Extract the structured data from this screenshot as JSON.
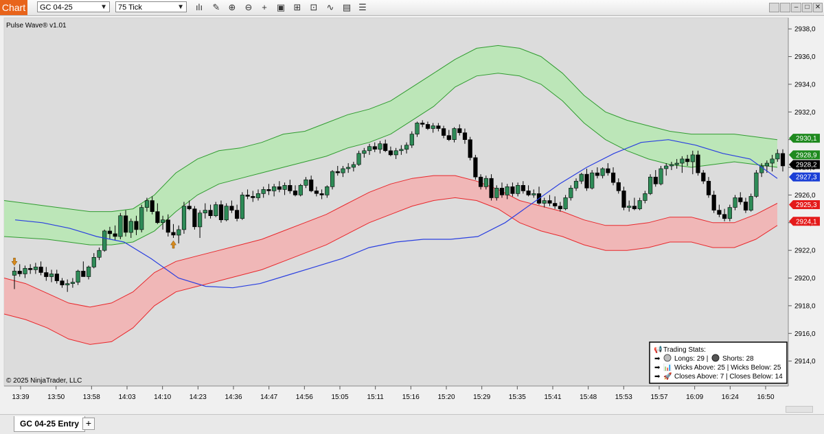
{
  "toolbar": {
    "chart_label": "Chart",
    "instrument": "GC 04-25",
    "interval": "75 Tick",
    "icons": [
      "bar-type-icon",
      "draw-pencil-icon",
      "zoom-in-icon",
      "zoom-out-icon",
      "crosshair-icon",
      "properties-icon",
      "move-icon",
      "strategies-icon",
      "indicators-icon",
      "templates-icon",
      "menu-icon"
    ],
    "window_buttons": [
      "minimize",
      "restore",
      "maximize",
      "close"
    ]
  },
  "tabs": {
    "entry": "GC 04-25 Entry",
    "add": "+"
  },
  "stats": {
    "title": "Trading Stats:",
    "longs": "Longs: 29 |",
    "shorts": "Shorts: 28",
    "wicks_above": "Wicks Above: 25 | Wicks Below: 25",
    "closes_above": "Closes Above: 7 | Closes Below: 14"
  },
  "chart_data": {
    "type": "candlestick",
    "indicator_label": "Pulse Wave® v1.01",
    "copyright": "© 2025 NinjaTrader, LLC",
    "ylim": [
      2912.2,
      2938.8
    ],
    "y_ticks": [
      2938.0,
      2936.0,
      2934.0,
      2932.0,
      2930.0,
      2928.0,
      2926.0,
      2924.0,
      2922.0,
      2920.0,
      2918.0,
      2916.0,
      2914.0
    ],
    "y_tick_labels": [
      "2938,0",
      "2936,0",
      "2934,0",
      "2932,0",
      "2930,0",
      "2928,0",
      "2926,0",
      "2924,0",
      "2922,0",
      "2920,0",
      "2918,0",
      "2916,0",
      "2914,0"
    ],
    "x_tick_labels": [
      "13:39",
      "13:50",
      "13:58",
      "14:03",
      "14:10",
      "14:23",
      "14:36",
      "14:47",
      "14:56",
      "15:05",
      "15:11",
      "15:16",
      "15:20",
      "15:29",
      "15:35",
      "15:41",
      "15:48",
      "15:53",
      "15:57",
      "16:09",
      "16:24",
      "16:50"
    ],
    "candles": [
      [
        2920.2,
        2920.8,
        2919.2,
        2920.5
      ],
      [
        2920.5,
        2921.0,
        2920.1,
        2920.3
      ],
      [
        2920.3,
        2920.9,
        2920.0,
        2920.7
      ],
      [
        2920.7,
        2921.0,
        2920.3,
        2920.6
      ],
      [
        2920.6,
        2921.1,
        2920.3,
        2920.8
      ],
      [
        2920.8,
        2921.2,
        2920.2,
        2920.4
      ],
      [
        2920.4,
        2920.8,
        2919.8,
        2920.1
      ],
      [
        2920.1,
        2920.6,
        2919.7,
        2920.3
      ],
      [
        2920.3,
        2920.6,
        2919.6,
        2919.8
      ],
      [
        2919.8,
        2920.0,
        2919.3,
        2919.5
      ],
      [
        2919.5,
        2919.9,
        2919.0,
        2919.6
      ],
      [
        2919.6,
        2920.0,
        2919.3,
        2919.7
      ],
      [
        2919.7,
        2920.6,
        2919.5,
        2920.5
      ],
      [
        2920.5,
        2921.2,
        2920.3,
        2920.1
      ],
      [
        2920.1,
        2920.9,
        2919.9,
        2920.8
      ],
      [
        2920.8,
        2921.8,
        2920.7,
        2921.5
      ],
      [
        2921.5,
        2922.2,
        2921.3,
        2922.0
      ],
      [
        2922.0,
        2923.5,
        2921.9,
        2923.4
      ],
      [
        2923.4,
        2923.7,
        2922.8,
        2923.2
      ],
      [
        2923.2,
        2923.8,
        2922.7,
        2923.0
      ],
      [
        2923.0,
        2924.7,
        2922.8,
        2924.5
      ],
      [
        2924.5,
        2924.9,
        2923.0,
        2923.3
      ],
      [
        2923.3,
        2924.3,
        2922.9,
        2924.1
      ],
      [
        2924.1,
        2924.5,
        2923.1,
        2923.5
      ],
      [
        2923.5,
        2925.3,
        2923.3,
        2925.1
      ],
      [
        2925.1,
        2925.8,
        2924.8,
        2925.6
      ],
      [
        2925.6,
        2925.9,
        2924.6,
        2924.8
      ],
      [
        2924.8,
        2925.4,
        2923.9,
        2924.0
      ],
      [
        2924.0,
        2924.5,
        2923.5,
        2924.2
      ],
      [
        2924.2,
        2924.6,
        2923.0,
        2923.3
      ],
      [
        2923.3,
        2923.9,
        2922.9,
        2923.1
      ],
      [
        2923.1,
        2923.8,
        2922.5,
        2923.5
      ],
      [
        2923.5,
        2925.5,
        2923.2,
        2925.2
      ],
      [
        2925.2,
        2925.6,
        2924.9,
        2925.0
      ],
      [
        2925.0,
        2925.2,
        2923.5,
        2923.7
      ],
      [
        2923.7,
        2924.9,
        2922.9,
        2924.7
      ],
      [
        2924.7,
        2925.4,
        2924.3,
        2924.9
      ],
      [
        2924.9,
        2925.3,
        2924.3,
        2924.5
      ],
      [
        2924.5,
        2925.5,
        2924.4,
        2925.3
      ],
      [
        2925.3,
        2925.6,
        2924.0,
        2924.2
      ],
      [
        2924.2,
        2925.4,
        2924.1,
        2925.2
      ],
      [
        2925.2,
        2925.6,
        2924.7,
        2924.9
      ],
      [
        2924.9,
        2925.3,
        2924.1,
        2924.3
      ],
      [
        2924.3,
        2926.2,
        2924.2,
        2926.0
      ],
      [
        2926.0,
        2926.4,
        2925.7,
        2925.9
      ],
      [
        2925.9,
        2926.3,
        2925.5,
        2925.8
      ],
      [
        2925.8,
        2926.4,
        2925.6,
        2926.1
      ],
      [
        2926.1,
        2926.6,
        2925.8,
        2926.4
      ],
      [
        2926.4,
        2926.8,
        2926.0,
        2926.3
      ],
      [
        2926.3,
        2926.8,
        2925.9,
        2926.6
      ],
      [
        2926.6,
        2927.0,
        2926.2,
        2926.4
      ],
      [
        2926.4,
        2926.9,
        2926.0,
        2926.7
      ],
      [
        2926.7,
        2927.1,
        2926.1,
        2926.3
      ],
      [
        2926.3,
        2926.7,
        2925.9,
        2926.0
      ],
      [
        2926.0,
        2926.8,
        2925.9,
        2926.7
      ],
      [
        2926.7,
        2927.3,
        2926.5,
        2927.1
      ],
      [
        2927.1,
        2927.4,
        2926.2,
        2926.3
      ],
      [
        2926.3,
        2926.6,
        2925.9,
        2926.1
      ],
      [
        2926.1,
        2926.4,
        2925.7,
        2926.0
      ],
      [
        2926.0,
        2926.7,
        2925.8,
        2926.6
      ],
      [
        2926.6,
        2927.8,
        2926.4,
        2927.7
      ],
      [
        2927.7,
        2928.1,
        2927.4,
        2927.6
      ],
      [
        2927.6,
        2928.1,
        2927.3,
        2927.9
      ],
      [
        2927.9,
        2928.3,
        2927.6,
        2928.0
      ],
      [
        2928.0,
        2928.4,
        2927.7,
        2928.2
      ],
      [
        2928.2,
        2929.2,
        2928.1,
        2929.0
      ],
      [
        2929.0,
        2929.4,
        2928.7,
        2929.2
      ],
      [
        2929.2,
        2929.7,
        2928.9,
        2929.5
      ],
      [
        2929.5,
        2929.8,
        2929.1,
        2929.3
      ],
      [
        2929.3,
        2929.9,
        2929.0,
        2929.7
      ],
      [
        2929.7,
        2930.0,
        2929.1,
        2929.2
      ],
      [
        2929.2,
        2929.5,
        2928.8,
        2928.9
      ],
      [
        2928.9,
        2929.4,
        2928.6,
        2929.2
      ],
      [
        2929.2,
        2929.6,
        2928.9,
        2929.3
      ],
      [
        2929.3,
        2929.8,
        2929.0,
        2929.6
      ],
      [
        2929.6,
        2930.6,
        2929.4,
        2930.4
      ],
      [
        2930.4,
        2931.3,
        2930.2,
        2931.2
      ],
      [
        2931.2,
        2931.4,
        2930.9,
        2931.1
      ],
      [
        2931.1,
        2931.3,
        2930.7,
        2930.8
      ],
      [
        2930.8,
        2931.2,
        2930.5,
        2931.0
      ],
      [
        2931.0,
        2931.2,
        2930.6,
        2930.8
      ],
      [
        2930.8,
        2931.0,
        2930.1,
        2930.3
      ],
      [
        2930.3,
        2930.7,
        2929.9,
        2930.0
      ],
      [
        2930.0,
        2930.9,
        2929.8,
        2930.8
      ],
      [
        2930.8,
        2931.1,
        2930.3,
        2930.5
      ],
      [
        2930.5,
        2930.8,
        2929.7,
        2930.0
      ],
      [
        2930.0,
        2930.2,
        2928.5,
        2928.7
      ],
      [
        2928.7,
        2928.9,
        2927.1,
        2927.3
      ],
      [
        2927.3,
        2927.5,
        2926.4,
        2926.6
      ],
      [
        2926.6,
        2927.4,
        2926.4,
        2927.2
      ],
      [
        2927.2,
        2927.5,
        2925.6,
        2925.8
      ],
      [
        2925.8,
        2926.7,
        2925.6,
        2926.5
      ],
      [
        2926.5,
        2926.9,
        2925.8,
        2926.0
      ],
      [
        2926.0,
        2926.8,
        2925.7,
        2926.6
      ],
      [
        2926.6,
        2926.9,
        2925.9,
        2926.1
      ],
      [
        2926.1,
        2926.9,
        2925.9,
        2926.7
      ],
      [
        2926.7,
        2927.0,
        2926.1,
        2926.3
      ],
      [
        2926.3,
        2926.7,
        2925.9,
        2926.0
      ],
      [
        2926.0,
        2926.4,
        2925.8,
        2926.1
      ],
      [
        2926.1,
        2926.6,
        2925.3,
        2925.4
      ],
      [
        2925.4,
        2925.8,
        2925.1,
        2925.6
      ],
      [
        2925.6,
        2926.0,
        2925.2,
        2925.4
      ],
      [
        2925.4,
        2925.9,
        2925.0,
        2925.2
      ],
      [
        2925.2,
        2925.5,
        2924.8,
        2925.0
      ],
      [
        2925.0,
        2926.0,
        2924.9,
        2925.8
      ],
      [
        2925.8,
        2926.7,
        2925.6,
        2926.5
      ],
      [
        2926.5,
        2927.2,
        2926.3,
        2927.0
      ],
      [
        2927.0,
        2927.6,
        2926.8,
        2927.5
      ],
      [
        2927.5,
        2927.9,
        2926.3,
        2926.5
      ],
      [
        2926.5,
        2927.8,
        2926.4,
        2927.6
      ],
      [
        2927.6,
        2928.0,
        2927.2,
        2927.4
      ],
      [
        2927.4,
        2928.0,
        2927.2,
        2927.9
      ],
      [
        2927.9,
        2928.3,
        2927.4,
        2927.6
      ],
      [
        2927.6,
        2928.0,
        2926.7,
        2926.9
      ],
      [
        2926.9,
        2927.2,
        2926.1,
        2926.3
      ],
      [
        2926.3,
        2926.6,
        2924.9,
        2925.1
      ],
      [
        2925.1,
        2925.6,
        2924.8,
        2925.2
      ],
      [
        2925.2,
        2925.8,
        2924.9,
        2925.0
      ],
      [
        2925.0,
        2925.8,
        2924.9,
        2925.6
      ],
      [
        2925.6,
        2926.3,
        2925.4,
        2926.1
      ],
      [
        2926.1,
        2927.5,
        2926.0,
        2927.3
      ],
      [
        2927.3,
        2927.8,
        2926.6,
        2926.8
      ],
      [
        2926.8,
        2928.1,
        2926.7,
        2927.9
      ],
      [
        2927.9,
        2928.3,
        2927.4,
        2928.1
      ],
      [
        2928.1,
        2928.4,
        2927.8,
        2928.2
      ],
      [
        2928.2,
        2928.6,
        2927.9,
        2928.3
      ],
      [
        2928.3,
        2928.8,
        2927.6,
        2928.6
      ],
      [
        2928.6,
        2928.9,
        2928.1,
        2928.4
      ],
      [
        2928.4,
        2929.2,
        2927.5,
        2928.9
      ],
      [
        2928.9,
        2929.2,
        2927.4,
        2927.6
      ],
      [
        2927.6,
        2927.8,
        2926.8,
        2927.0
      ],
      [
        2927.0,
        2927.3,
        2925.8,
        2926.0
      ],
      [
        2926.0,
        2926.3,
        2924.7,
        2924.9
      ],
      [
        2924.9,
        2925.3,
        2924.4,
        2924.6
      ],
      [
        2924.6,
        2925.0,
        2924.1,
        2924.3
      ],
      [
        2924.3,
        2925.3,
        2924.1,
        2925.1
      ],
      [
        2925.1,
        2926.0,
        2924.9,
        2925.8
      ],
      [
        2925.8,
        2926.2,
        2925.3,
        2925.5
      ],
      [
        2925.5,
        2925.8,
        2924.7,
        2924.9
      ],
      [
        2924.9,
        2926.1,
        2924.8,
        2925.9
      ],
      [
        2925.9,
        2927.8,
        2925.8,
        2927.6
      ],
      [
        2927.6,
        2928.3,
        2927.3,
        2928.1
      ],
      [
        2928.1,
        2928.5,
        2927.6,
        2928.3
      ],
      [
        2928.3,
        2928.9,
        2927.7,
        2928.6
      ],
      [
        2928.6,
        2929.3,
        2928.4,
        2929.0
      ],
      [
        2929.0,
        2929.3,
        2927.7,
        2928.1
      ]
    ],
    "upper_band": {
      "outer": [
        2925.6,
        2925.4,
        2925.2,
        2925.0,
        2924.8,
        2924.8,
        2925.0,
        2926.0,
        2927.6,
        2928.6,
        2929.2,
        2929.4,
        2929.8,
        2930.4,
        2930.6,
        2931.2,
        2931.8,
        2932.2,
        2932.8,
        2933.8,
        2934.8,
        2935.8,
        2936.6,
        2936.8,
        2936.6,
        2936.0,
        2934.8,
        2933.2,
        2932.0,
        2931.4,
        2931.0,
        2930.6,
        2930.4,
        2930.4,
        2930.4,
        2930.2,
        2930.0
      ],
      "inner": [
        2923.0,
        2922.9,
        2922.8,
        2922.6,
        2922.4,
        2922.4,
        2922.6,
        2923.4,
        2924.8,
        2926.0,
        2926.8,
        2927.2,
        2927.6,
        2928.0,
        2928.4,
        2928.8,
        2929.4,
        2929.8,
        2930.4,
        2931.4,
        2932.4,
        2933.8,
        2934.6,
        2934.8,
        2934.6,
        2934.0,
        2932.8,
        2931.2,
        2930.0,
        2929.2,
        2928.6,
        2928.2,
        2928.0,
        2928.2,
        2928.4,
        2928.2,
        2928.0
      ]
    },
    "lower_band": {
      "outer": [
        2917.4,
        2917.0,
        2916.4,
        2915.6,
        2915.2,
        2915.4,
        2916.4,
        2918.0,
        2919.0,
        2919.4,
        2919.8,
        2920.2,
        2920.6,
        2921.2,
        2921.8,
        2922.4,
        2923.2,
        2924.0,
        2924.6,
        2925.2,
        2925.6,
        2925.8,
        2925.6,
        2925.0,
        2924.0,
        2923.4,
        2923.0,
        2922.4,
        2922.0,
        2922.0,
        2922.2,
        2922.6,
        2922.6,
        2922.2,
        2922.2,
        2922.8,
        2923.8
      ],
      "inner": [
        2920.0,
        2919.6,
        2918.9,
        2918.2,
        2917.9,
        2918.2,
        2919.0,
        2920.4,
        2921.2,
        2921.6,
        2922.0,
        2922.4,
        2922.8,
        2923.4,
        2924.0,
        2924.6,
        2925.4,
        2926.2,
        2926.8,
        2927.2,
        2927.4,
        2927.4,
        2927.0,
        2926.4,
        2925.6,
        2925.2,
        2924.8,
        2924.2,
        2923.8,
        2923.8,
        2924.0,
        2924.4,
        2924.4,
        2924.0,
        2924.0,
        2924.6,
        2925.4
      ]
    },
    "blue_line": [
      2924.2,
      2924.0,
      2923.6,
      2923.0,
      2922.6,
      2921.4,
      2920.0,
      2919.4,
      2919.3,
      2919.6,
      2920.2,
      2920.8,
      2921.4,
      2922.2,
      2922.6,
      2922.8,
      2922.8,
      2923.0,
      2924.0,
      2925.4,
      2926.8,
      2928.0,
      2929.0,
      2929.8,
      2930.0,
      2929.6,
      2929.0,
      2928.6,
      2927.2
    ],
    "price_tags": [
      {
        "label": "2930,1",
        "value": 2930.1,
        "color": "#1f8a1f",
        "text": "#ffffff"
      },
      {
        "label": "2928,9",
        "value": 2928.9,
        "color": "#1f8a1f",
        "text": "#ffffff"
      },
      {
        "label": "2928,2",
        "value": 2928.2,
        "color": "#000000",
        "text": "#ffffff"
      },
      {
        "label": "2927,3",
        "value": 2927.3,
        "color": "#1a3fd6",
        "text": "#ffffff"
      },
      {
        "label": "2925,3",
        "value": 2925.3,
        "color": "#e41a1a",
        "text": "#ffffff"
      },
      {
        "label": "2924,1",
        "value": 2924.1,
        "color": "#e41a1a",
        "text": "#ffffff"
      }
    ],
    "signals": [
      {
        "type": "short",
        "candle": 0,
        "price": 2921.2,
        "color": "#d88a1c"
      },
      {
        "type": "long",
        "candle": 30,
        "price": 2922.4,
        "color": "#d88a1c"
      }
    ],
    "colors": {
      "background": "#dcdcdc",
      "up_candle": "#2e8b57",
      "down_candle": "#000000",
      "upper_fill": "#b9e6b5",
      "upper_line": "#2f9b2f",
      "lower_fill": "#f0b4b4",
      "lower_line": "#e8262a",
      "blue_line": "#2a3fe0"
    }
  }
}
